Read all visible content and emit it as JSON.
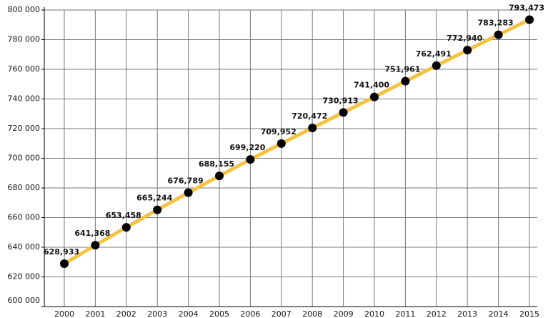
{
  "chart_data": {
    "type": "line",
    "categories": [
      "2000",
      "2001",
      "2002",
      "2003",
      "2004",
      "2005",
      "2006",
      "2007",
      "2008",
      "2009",
      "2010",
      "2011",
      "2012",
      "2013",
      "2014",
      "2015"
    ],
    "series": [
      {
        "color": "#f5c242",
        "values": [
          628933,
          641368,
          653458,
          665244,
          676789,
          688155,
          699220,
          709952,
          720472,
          730913,
          741400,
          751961,
          762491,
          772940,
          783283,
          793473
        ],
        "value_labels": [
          "628,933",
          "641,368",
          "653,458",
          "665,244",
          "676,789",
          "688,155",
          "699,220",
          "709,952",
          "720,472",
          "730,913",
          "741,400",
          "751,961",
          "762,491",
          "772,940",
          "783,283",
          "793,473"
        ]
      }
    ],
    "ylim": [
      600000,
      800000
    ],
    "yticks": [
      {
        "value": 600000,
        "label": "600 000"
      },
      {
        "value": 620000,
        "label": "620 000"
      },
      {
        "value": 640000,
        "label": "640 000"
      },
      {
        "value": 660000,
        "label": "660 000"
      },
      {
        "value": 680000,
        "label": "680 000"
      },
      {
        "value": 700000,
        "label": "700 000"
      },
      {
        "value": 720000,
        "label": "720 000"
      },
      {
        "value": 740000,
        "label": "740 000"
      },
      {
        "value": 760000,
        "label": "760 000"
      },
      {
        "value": 780000,
        "label": "780 000"
      },
      {
        "value": 800000,
        "label": "800 000"
      }
    ],
    "grid": true,
    "marker_color": "#000000"
  }
}
